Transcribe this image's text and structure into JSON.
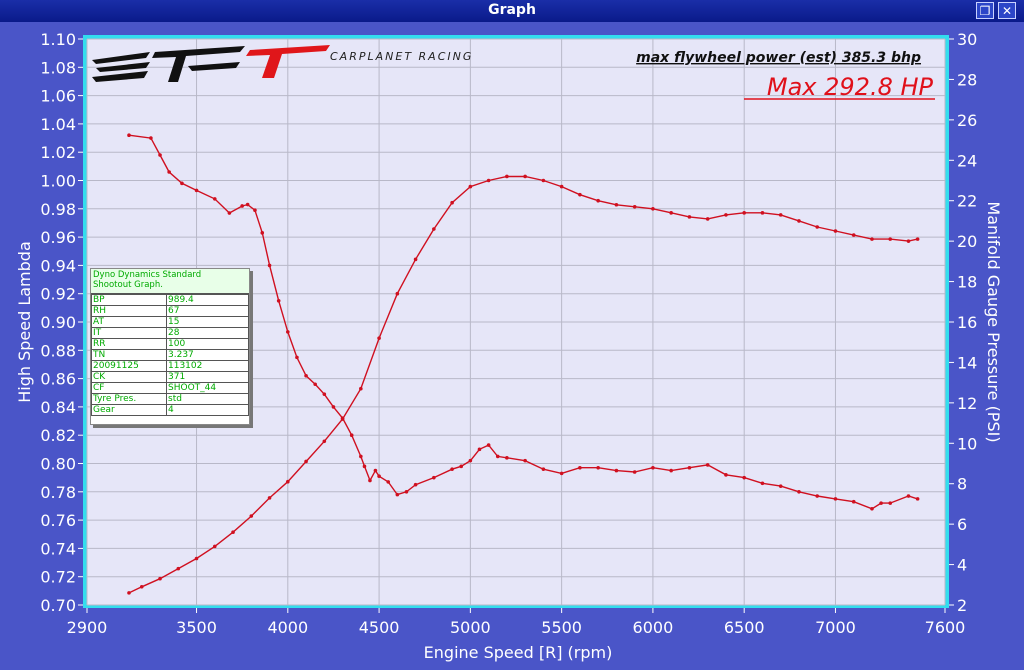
{
  "window": {
    "title": "Graph",
    "restore_icon": "restore-icon",
    "close_icon": "close-icon"
  },
  "colors": {
    "curve": "#d01020",
    "grid": "#b8b8c8",
    "plot_bg": "#e6e6f8",
    "frame": "#33ddee",
    "window_bg": "#4a55c8"
  },
  "header": {
    "logo_text": "CARPLANET RACING",
    "max_flywheel": "max flywheel power (est) 385.3 bhp",
    "max_hp": "Max 292.8 HP"
  },
  "info_panel": {
    "title_line1": "Dyno Dynamics Standard",
    "title_line2": "Shootout Graph.",
    "rows": [
      [
        "BP",
        "989.4"
      ],
      [
        "RH",
        "67"
      ],
      [
        "AT",
        "15"
      ],
      [
        "IT",
        "28"
      ],
      [
        "RR",
        "100"
      ],
      [
        "TN",
        "3.237"
      ],
      [
        "20091125",
        "113102"
      ],
      [
        "CK",
        "371"
      ],
      [
        "CF",
        "SHOOT_44"
      ],
      [
        "Tyre Pres.",
        "std"
      ],
      [
        "Gear",
        "4"
      ]
    ]
  },
  "chart_data": {
    "type": "line",
    "xlabel": "Engine Speed [R] (rpm)",
    "ylabel_left": "High Speed Lambda",
    "ylabel_right": "Manifold Gauge Pressure (PSI)",
    "xlim": [
      2900,
      7600
    ],
    "ylim_left": [
      0.7,
      1.1
    ],
    "ylim_right": [
      2,
      30
    ],
    "x_ticks": [
      "2900",
      "3500",
      "4000",
      "4500",
      "5000",
      "5500",
      "6000",
      "6500",
      "7000",
      "7600"
    ],
    "y_left_ticks": [
      "0.70",
      "0.72",
      "0.74",
      "0.76",
      "0.78",
      "0.80",
      "0.82",
      "0.84",
      "0.86",
      "0.88",
      "0.90",
      "0.92",
      "0.94",
      "0.96",
      "0.98",
      "1.00",
      "1.02",
      "1.04",
      "1.06",
      "1.08",
      "1.10"
    ],
    "y_right_ticks": [
      "2",
      "4",
      "6",
      "8",
      "10",
      "12",
      "14",
      "16",
      "18",
      "20",
      "22",
      "24",
      "26",
      "28",
      "30"
    ],
    "grid": true,
    "series": [
      {
        "axis": "left",
        "x": [
          3130,
          3250,
          3300,
          3350,
          3420,
          3500,
          3600,
          3680,
          3750,
          3780,
          3820,
          3860,
          3900,
          3950,
          4000,
          4050,
          4100,
          4150,
          4200,
          4250,
          4300,
          4350,
          4400,
          4420,
          4450,
          4480,
          4500,
          4550,
          4600,
          4650,
          4700,
          4800,
          4900,
          4950,
          5000,
          5050,
          5100,
          5150,
          5200,
          5300,
          5400,
          5500,
          5600,
          5700,
          5800,
          5900,
          6000,
          6100,
          6200,
          6300,
          6400,
          6500,
          6600,
          6700,
          6800,
          6900,
          7000,
          7100,
          7200,
          7250,
          7300,
          7400,
          7450
        ],
        "y": [
          1.032,
          1.03,
          1.018,
          1.006,
          0.998,
          0.993,
          0.987,
          0.977,
          0.982,
          0.983,
          0.979,
          0.963,
          0.94,
          0.915,
          0.893,
          0.875,
          0.862,
          0.856,
          0.849,
          0.84,
          0.832,
          0.82,
          0.805,
          0.798,
          0.788,
          0.795,
          0.791,
          0.787,
          0.778,
          0.78,
          0.785,
          0.79,
          0.796,
          0.798,
          0.802,
          0.81,
          0.813,
          0.805,
          0.804,
          0.802,
          0.796,
          0.793,
          0.797,
          0.797,
          0.795,
          0.794,
          0.797,
          0.795,
          0.797,
          0.799,
          0.792,
          0.79,
          0.786,
          0.784,
          0.78,
          0.777,
          0.775,
          0.773,
          0.768,
          0.772,
          0.772,
          0.777,
          0.775
        ]
      },
      {
        "axis": "right",
        "x": [
          3130,
          3200,
          3300,
          3400,
          3500,
          3600,
          3700,
          3800,
          3900,
          4000,
          4100,
          4200,
          4300,
          4400,
          4500,
          4600,
          4700,
          4800,
          4900,
          5000,
          5100,
          5200,
          5300,
          5400,
          5500,
          5600,
          5700,
          5800,
          5900,
          6000,
          6100,
          6200,
          6300,
          6400,
          6500,
          6600,
          6700,
          6800,
          6900,
          7000,
          7100,
          7200,
          7300,
          7400,
          7450
        ],
        "y": [
          2.6,
          2.9,
          3.3,
          3.8,
          4.3,
          4.9,
          5.6,
          6.4,
          7.3,
          8.1,
          9.1,
          10.1,
          11.2,
          12.7,
          15.2,
          17.4,
          19.1,
          20.6,
          21.9,
          22.7,
          23.0,
          23.2,
          23.2,
          23.0,
          22.7,
          22.3,
          22.0,
          21.8,
          21.7,
          21.6,
          21.4,
          21.2,
          21.1,
          21.3,
          21.4,
          21.4,
          21.3,
          21.0,
          20.7,
          20.5,
          20.3,
          20.1,
          20.1,
          20.0,
          20.1
        ]
      }
    ]
  }
}
